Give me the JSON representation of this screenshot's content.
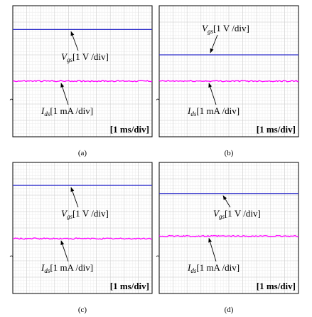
{
  "chart_data": [
    {
      "type": "line",
      "caption": "(a)",
      "timebase": "[1 ms/div]",
      "xlim": [
        0,
        10
      ],
      "ylim": [
        0,
        8
      ],
      "grid": true,
      "series": [
        {
          "name": "Vgs",
          "label_main": "V",
          "label_sub": "gs",
          "label_scale": "[1 V /div]",
          "color": "#3333cc",
          "level": 6.55,
          "noise": 0
        },
        {
          "name": "Ids",
          "label_main": "I",
          "label_sub": "ds",
          "label_scale": "[1 mA /div]",
          "color": "#ff00ff",
          "level": 3.4,
          "noise": 0.04
        }
      ]
    },
    {
      "type": "line",
      "caption": "(b)",
      "timebase": "[1 ms/div]",
      "xlim": [
        0,
        10
      ],
      "ylim": [
        0,
        8
      ],
      "grid": true,
      "series": [
        {
          "name": "Vgs",
          "label_main": "V",
          "label_sub": "gs",
          "label_scale": "[1 V /div]",
          "color": "#3333cc",
          "level": 5.0,
          "noise": 0
        },
        {
          "name": "Ids",
          "label_main": "I",
          "label_sub": "ds",
          "label_scale": "[1 mA /div]",
          "color": "#ff00ff",
          "level": 3.4,
          "noise": 0.04
        }
      ]
    },
    {
      "type": "line",
      "caption": "(c)",
      "timebase": "[1 ms/div]",
      "xlim": [
        0,
        10
      ],
      "ylim": [
        0,
        8
      ],
      "grid": true,
      "series": [
        {
          "name": "Vgs",
          "label_main": "V",
          "label_sub": "gs",
          "label_scale": "[1 V /div]",
          "color": "#3333cc",
          "level": 6.6,
          "noise": 0
        },
        {
          "name": "Ids",
          "label_main": "I",
          "label_sub": "ds",
          "label_scale": "[1 mA /div]",
          "color": "#ff00ff",
          "level": 3.35,
          "noise": 0.04
        }
      ]
    },
    {
      "type": "line",
      "caption": "(d)",
      "timebase": "[1 ms/div]",
      "xlim": [
        0,
        10
      ],
      "ylim": [
        0,
        8
      ],
      "grid": true,
      "series": [
        {
          "name": "Vgs",
          "label_main": "V",
          "label_sub": "gs",
          "label_scale": "[1 V /div]",
          "color": "#3333cc",
          "level": 6.1,
          "noise": 0
        },
        {
          "name": "Ids",
          "label_main": "I",
          "label_sub": "ds",
          "label_scale": "[1 mA /div]",
          "color": "#ff00ff",
          "level": 3.5,
          "noise": 0.04
        }
      ]
    }
  ]
}
